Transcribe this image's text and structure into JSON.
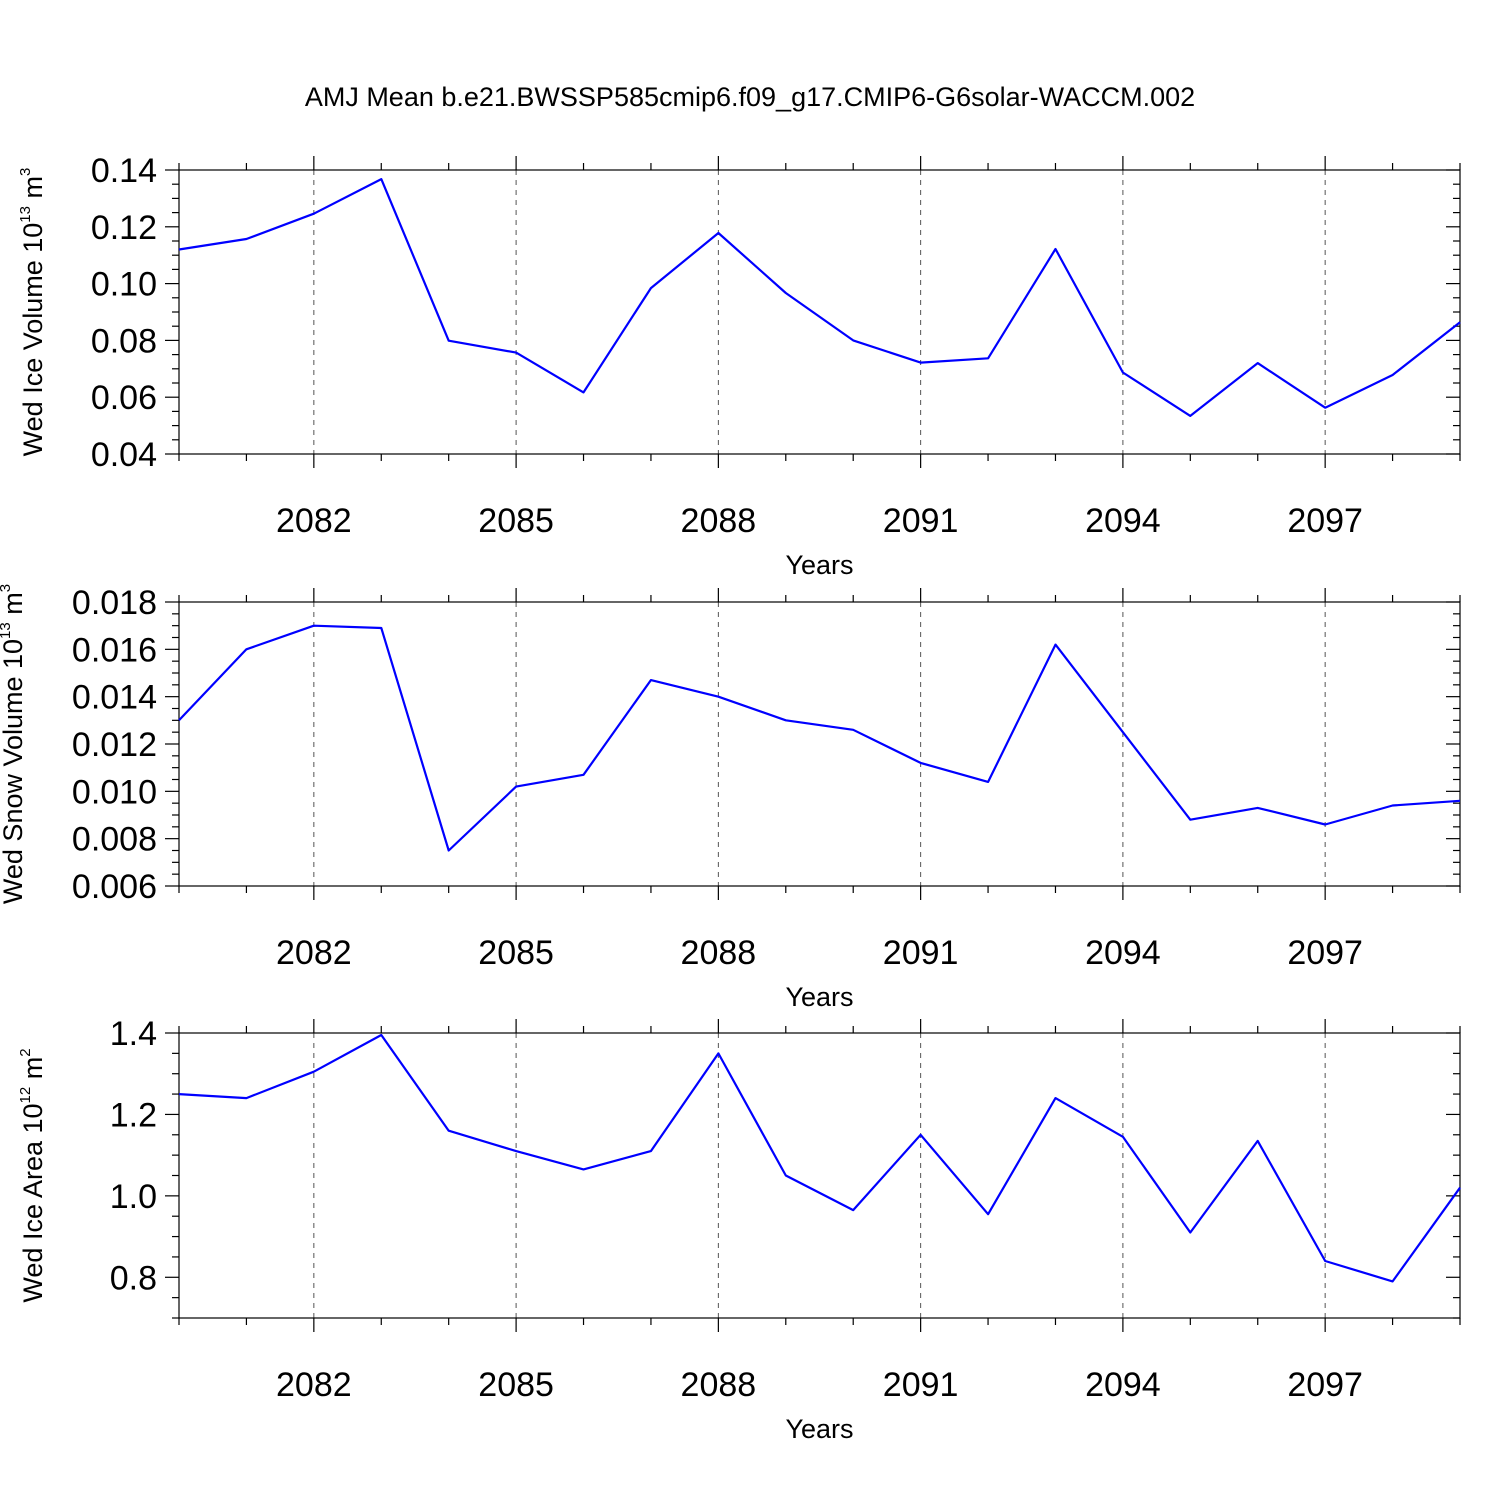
{
  "title": "AMJ Mean b.e21.BWSSP585cmip6.f09_g17.CMIP6-G6solar-WACCM.002",
  "chart_data": [
    {
      "type": "line",
      "ylabel": {
        "main": "Wed Ice Volume 10",
        "sup": "13",
        "unit": " m",
        "unit_sup": "3"
      },
      "xlabel": "Years",
      "xlim": [
        2080,
        2099
      ],
      "ylim": [
        0.04,
        0.14
      ],
      "xticks": [
        2082,
        2085,
        2088,
        2091,
        2094,
        2097
      ],
      "yticks": [
        0.04,
        0.06,
        0.08,
        0.1,
        0.12,
        0.14
      ],
      "ytick_labels": [
        "0.04",
        "0.06",
        "0.08",
        "0.10",
        "0.12",
        "0.14"
      ],
      "yminor_step": 0.005,
      "series": [
        {
          "name": "Wed Ice Volume",
          "color": "#0000ff",
          "x": [
            2080,
            2081,
            2082,
            2083,
            2084,
            2085,
            2086,
            2087,
            2088,
            2089,
            2090,
            2091,
            2092,
            2093,
            2094,
            2095,
            2096,
            2097,
            2098,
            2099
          ],
          "values": [
            0.112,
            0.1157,
            0.1246,
            0.1368,
            0.0799,
            0.0757,
            0.0617,
            0.0984,
            0.1178,
            0.0967,
            0.08,
            0.0722,
            0.0737,
            0.1122,
            0.0687,
            0.0534,
            0.072,
            0.0563,
            0.0678,
            0.0864
          ]
        }
      ]
    },
    {
      "type": "line",
      "ylabel": {
        "main": "Wed Snow Volume 10",
        "sup": "13",
        "unit": " m",
        "unit_sup": "3"
      },
      "xlabel": "Years",
      "xlim": [
        2080,
        2099
      ],
      "ylim": [
        0.006,
        0.018
      ],
      "xticks": [
        2082,
        2085,
        2088,
        2091,
        2094,
        2097
      ],
      "yticks": [
        0.006,
        0.008,
        0.01,
        0.012,
        0.014,
        0.016,
        0.018
      ],
      "ytick_labels": [
        "0.006",
        "0.008",
        "0.010",
        "0.012",
        "0.014",
        "0.016",
        "0.018"
      ],
      "yminor_step": 0.0005,
      "series": [
        {
          "name": "Wed Snow Volume",
          "color": "#0000ff",
          "x": [
            2080,
            2081,
            2082,
            2083,
            2084,
            2085,
            2086,
            2087,
            2088,
            2089,
            2090,
            2091,
            2092,
            2093,
            2094,
            2095,
            2096,
            2097,
            2098,
            2099
          ],
          "values": [
            0.013,
            0.016,
            0.017,
            0.0169,
            0.0075,
            0.0102,
            0.0107,
            0.0147,
            0.014,
            0.013,
            0.0126,
            0.0112,
            0.0104,
            0.0162,
            0.0125,
            0.0088,
            0.0093,
            0.0086,
            0.0094,
            0.0096
          ]
        }
      ]
    },
    {
      "type": "line",
      "ylabel": {
        "main": "Wed Ice Area 10",
        "sup": "12",
        "unit": " m",
        "unit_sup": "2"
      },
      "xlabel": "Years",
      "xlim": [
        2080,
        2099
      ],
      "ylim": [
        0.7,
        1.4
      ],
      "xticks": [
        2082,
        2085,
        2088,
        2091,
        2094,
        2097
      ],
      "yticks": [
        0.8,
        1.0,
        1.2,
        1.4
      ],
      "ytick_labels": [
        "0.8",
        "1.0",
        "1.2",
        "1.4"
      ],
      "yminor_step": 0.05,
      "series": [
        {
          "name": "Wed Ice Area",
          "color": "#0000ff",
          "x": [
            2080,
            2081,
            2082,
            2083,
            2084,
            2085,
            2086,
            2087,
            2088,
            2089,
            2090,
            2091,
            2092,
            2093,
            2094,
            2095,
            2096,
            2097,
            2098,
            2099
          ],
          "values": [
            1.25,
            1.24,
            1.305,
            1.395,
            1.16,
            1.11,
            1.065,
            1.11,
            1.35,
            1.05,
            0.965,
            1.15,
            0.955,
            1.24,
            1.145,
            0.91,
            1.135,
            0.84,
            0.79,
            1.02
          ]
        }
      ]
    }
  ]
}
